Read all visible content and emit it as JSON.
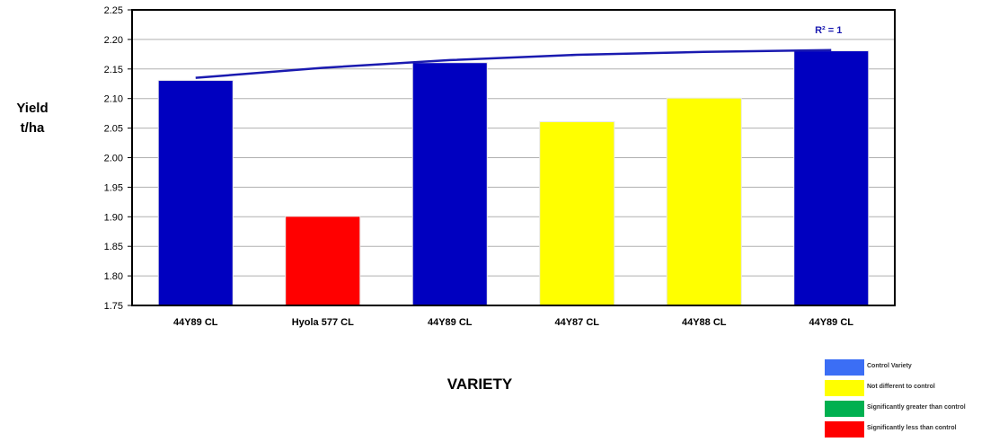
{
  "chart_data": {
    "type": "bar",
    "categories": [
      "44Y89 CL",
      "Hyola 577 CL",
      "44Y89 CL",
      "44Y87 CL",
      "44Y88 CL",
      "44Y89 CL"
    ],
    "values": [
      2.13,
      1.9,
      2.16,
      2.06,
      2.1,
      2.18
    ],
    "bar_colors": [
      "#0000c0",
      "#ff0000",
      "#0000c0",
      "#ffff00",
      "#ffff00",
      "#0000c0"
    ],
    "trendline": {
      "label": "R² = 1",
      "color": "#1a1ab0",
      "points": [
        2.135,
        2.152,
        2.165,
        2.174,
        2.179,
        2.182
      ]
    },
    "ylabel_line1": "Yield",
    "ylabel_line2": "t/ha",
    "xlabel": "VARIETY",
    "ylim": [
      1.75,
      2.25
    ],
    "ytick_step": 0.05,
    "grid": true,
    "legend_placement": "bottom-right",
    "legend": [
      {
        "label": "Control Variety",
        "color": "#3b6ef5"
      },
      {
        "label": "Not different to control",
        "color": "#ffff00"
      },
      {
        "label": "Significantly greater than control",
        "color": "#00b050"
      },
      {
        "label": "Significantly less than control",
        "color": "#ff0000"
      }
    ]
  }
}
